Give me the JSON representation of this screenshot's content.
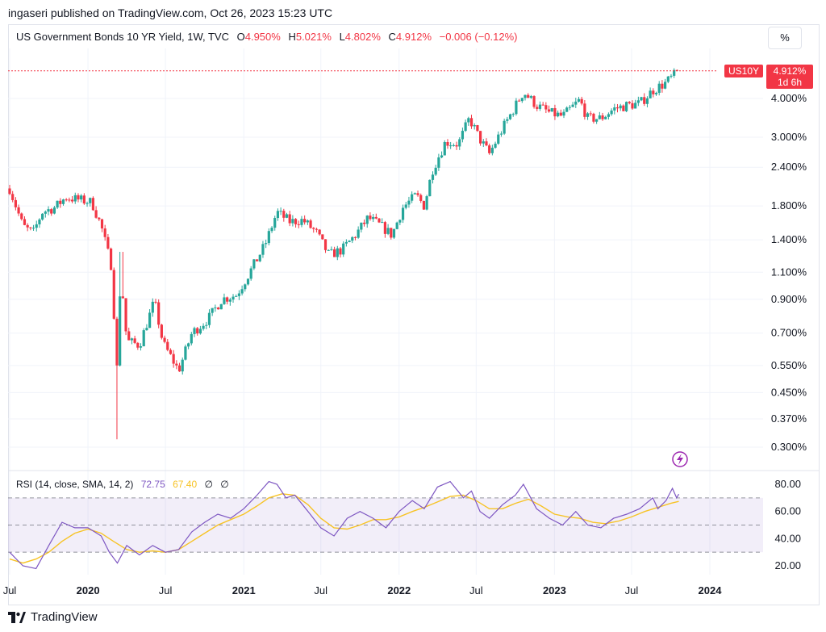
{
  "header": {
    "publisher": "ingaseri published on TradingView.com, Oct 26, 2023 15:23 UTC"
  },
  "legend": {
    "symbol": "US Government Bonds 10 YR Yield, 1W, TVC",
    "open_label": "O",
    "open": "4.950%",
    "high_label": "H",
    "high": "5.021%",
    "low_label": "L",
    "low": "4.802%",
    "close_label": "C",
    "close": "4.912%",
    "change": "−0.006 (−0.12%)"
  },
  "scale_button": "%",
  "price_tag": {
    "ticker": "US10Y",
    "value": "4.912%",
    "countdown": "1d 6h"
  },
  "rsi_legend": {
    "label": "RSI (14, close, SMA, 14, 2)",
    "rsi": "72.75",
    "sma": "67.40",
    "extra1": "∅",
    "extra2": "∅"
  },
  "footer": {
    "brand": "TradingView"
  },
  "colors": {
    "up": "#26a69a",
    "down": "#f23645",
    "rsi": "#7e57c2",
    "rsi_sma": "#f7c325",
    "band": "#7e57c2"
  },
  "chart_data": [
    {
      "type": "candlestick",
      "title": "US Government Bonds 10 YR Yield, 1W, TVC",
      "y_scale": "log",
      "y_ticks": [
        "4.000%",
        "3.000%",
        "2.400%",
        "1.800%",
        "1.400%",
        "1.100%",
        "0.900%",
        "0.700%",
        "0.550%",
        "0.450%",
        "0.370%",
        "0.300%"
      ],
      "y_tick_values": [
        4.0,
        3.0,
        2.4,
        1.8,
        1.4,
        1.1,
        0.9,
        0.7,
        0.55,
        0.45,
        0.37,
        0.3
      ],
      "x_ticks": [
        "Jul",
        "2020",
        "Jul",
        "2021",
        "Jul",
        "2022",
        "Jul",
        "2023",
        "Jul",
        "2024"
      ],
      "x_tick_dates": [
        "2019-07-01",
        "2020-01-01",
        "2020-07-01",
        "2021-01-01",
        "2021-07-01",
        "2022-01-01",
        "2022-07-01",
        "2023-01-01",
        "2023-07-01",
        "2024-01-01"
      ],
      "last_value": 4.912,
      "series": [
        {
          "date": "2019-07-01",
          "value": 2.05
        },
        {
          "date": "2019-08-01",
          "value": 1.55
        },
        {
          "date": "2019-08-25",
          "value": 1.47
        },
        {
          "date": "2019-09-15",
          "value": 1.72
        },
        {
          "date": "2019-10-15",
          "value": 1.78
        },
        {
          "date": "2019-11-10",
          "value": 1.92
        },
        {
          "date": "2019-12-15",
          "value": 1.88
        },
        {
          "date": "2020-01-10",
          "value": 1.85
        },
        {
          "date": "2020-02-01",
          "value": 1.55
        },
        {
          "date": "2020-02-25",
          "value": 1.15
        },
        {
          "date": "2020-03-09",
          "value": 0.54
        },
        {
          "date": "2020-03-18",
          "value": 1.1
        },
        {
          "date": "2020-04-01",
          "value": 0.66
        },
        {
          "date": "2020-05-01",
          "value": 0.64
        },
        {
          "date": "2020-06-05",
          "value": 0.89
        },
        {
          "date": "2020-06-25",
          "value": 0.65
        },
        {
          "date": "2020-08-01",
          "value": 0.53
        },
        {
          "date": "2020-09-01",
          "value": 0.7
        },
        {
          "date": "2020-10-10",
          "value": 0.78
        },
        {
          "date": "2020-11-10",
          "value": 0.9
        },
        {
          "date": "2020-12-15",
          "value": 0.93
        },
        {
          "date": "2021-01-15",
          "value": 1.1
        },
        {
          "date": "2021-02-20",
          "value": 1.35
        },
        {
          "date": "2021-03-20",
          "value": 1.72
        },
        {
          "date": "2021-04-20",
          "value": 1.6
        },
        {
          "date": "2021-05-20",
          "value": 1.62
        },
        {
          "date": "2021-06-20",
          "value": 1.48
        },
        {
          "date": "2021-07-20",
          "value": 1.25
        },
        {
          "date": "2021-08-20",
          "value": 1.3
        },
        {
          "date": "2021-09-20",
          "value": 1.45
        },
        {
          "date": "2021-10-20",
          "value": 1.65
        },
        {
          "date": "2021-11-20",
          "value": 1.55
        },
        {
          "date": "2021-12-15",
          "value": 1.45
        },
        {
          "date": "2022-01-10",
          "value": 1.78
        },
        {
          "date": "2022-02-10",
          "value": 1.95
        },
        {
          "date": "2022-03-01",
          "value": 1.8
        },
        {
          "date": "2022-03-20",
          "value": 2.35
        },
        {
          "date": "2022-04-20",
          "value": 2.9
        },
        {
          "date": "2022-05-20",
          "value": 2.85
        },
        {
          "date": "2022-06-15",
          "value": 3.45
        },
        {
          "date": "2022-07-10",
          "value": 2.95
        },
        {
          "date": "2022-08-01",
          "value": 2.65
        },
        {
          "date": "2022-09-01",
          "value": 3.2
        },
        {
          "date": "2022-10-20",
          "value": 4.2
        },
        {
          "date": "2022-11-20",
          "value": 3.8
        },
        {
          "date": "2022-12-20",
          "value": 3.6
        },
        {
          "date": "2023-01-20",
          "value": 3.5
        },
        {
          "date": "2023-03-01",
          "value": 3.95
        },
        {
          "date": "2023-03-20",
          "value": 3.45
        },
        {
          "date": "2023-04-20",
          "value": 3.45
        },
        {
          "date": "2023-05-20",
          "value": 3.7
        },
        {
          "date": "2023-06-20",
          "value": 3.8
        },
        {
          "date": "2023-07-20",
          "value": 3.85
        },
        {
          "date": "2023-08-20",
          "value": 4.25
        },
        {
          "date": "2023-09-20",
          "value": 4.5
        },
        {
          "date": "2023-10-20",
          "value": 4.912
        }
      ]
    },
    {
      "type": "line",
      "title": "RSI (14, close, SMA, 14, 2)",
      "ylim": [
        10,
        90
      ],
      "y_ticks": [
        "80.00",
        "60.00",
        "40.00",
        "20.00"
      ],
      "y_tick_values": [
        80,
        60,
        40,
        20
      ],
      "bands": [
        70,
        50,
        30
      ],
      "series": [
        {
          "name": "RSI",
          "points": [
            [
              "2019-07-01",
              30
            ],
            [
              "2019-08-01",
              20
            ],
            [
              "2019-09-01",
              18
            ],
            [
              "2019-10-01",
              35
            ],
            [
              "2019-11-01",
              52
            ],
            [
              "2019-12-01",
              48
            ],
            [
              "2020-01-01",
              48
            ],
            [
              "2020-02-01",
              42
            ],
            [
              "2020-02-20",
              30
            ],
            [
              "2020-03-10",
              22
            ],
            [
              "2020-04-01",
              35
            ],
            [
              "2020-05-01",
              28
            ],
            [
              "2020-06-01",
              35
            ],
            [
              "2020-07-01",
              30
            ],
            [
              "2020-08-01",
              32
            ],
            [
              "2020-09-01",
              45
            ],
            [
              "2020-10-01",
              52
            ],
            [
              "2020-11-01",
              58
            ],
            [
              "2020-12-01",
              55
            ],
            [
              "2021-01-01",
              62
            ],
            [
              "2021-02-01",
              72
            ],
            [
              "2021-03-01",
              82
            ],
            [
              "2021-03-20",
              80
            ],
            [
              "2021-04-10",
              70
            ],
            [
              "2021-05-01",
              72
            ],
            [
              "2021-06-01",
              60
            ],
            [
              "2021-07-01",
              48
            ],
            [
              "2021-08-01",
              42
            ],
            [
              "2021-09-01",
              55
            ],
            [
              "2021-10-01",
              60
            ],
            [
              "2021-11-01",
              55
            ],
            [
              "2021-12-01",
              48
            ],
            [
              "2022-01-01",
              60
            ],
            [
              "2022-02-01",
              68
            ],
            [
              "2022-03-01",
              62
            ],
            [
              "2022-04-01",
              78
            ],
            [
              "2022-05-01",
              82
            ],
            [
              "2022-06-01",
              70
            ],
            [
              "2022-06-20",
              75
            ],
            [
              "2022-07-10",
              60
            ],
            [
              "2022-08-01",
              55
            ],
            [
              "2022-09-01",
              65
            ],
            [
              "2022-10-01",
              72
            ],
            [
              "2022-10-20",
              80
            ],
            [
              "2022-11-20",
              62
            ],
            [
              "2022-12-20",
              55
            ],
            [
              "2023-01-20",
              50
            ],
            [
              "2023-02-20",
              60
            ],
            [
              "2023-03-20",
              50
            ],
            [
              "2023-04-20",
              48
            ],
            [
              "2023-05-20",
              55
            ],
            [
              "2023-06-20",
              58
            ],
            [
              "2023-07-20",
              62
            ],
            [
              "2023-08-20",
              70
            ],
            [
              "2023-09-01",
              62
            ],
            [
              "2023-09-20",
              68
            ],
            [
              "2023-10-05",
              77
            ],
            [
              "2023-10-15",
              70
            ],
            [
              "2023-10-20",
              72.75
            ]
          ]
        },
        {
          "name": "SMA",
          "points": [
            [
              "2019-07-01",
              25
            ],
            [
              "2019-08-01",
              22
            ],
            [
              "2019-09-01",
              25
            ],
            [
              "2019-10-01",
              30
            ],
            [
              "2019-11-01",
              38
            ],
            [
              "2019-12-01",
              44
            ],
            [
              "2020-01-01",
              47
            ],
            [
              "2020-02-01",
              44
            ],
            [
              "2020-03-01",
              38
            ],
            [
              "2020-04-01",
              32
            ],
            [
              "2020-05-01",
              30
            ],
            [
              "2020-06-01",
              31
            ],
            [
              "2020-07-01",
              30
            ],
            [
              "2020-08-01",
              32
            ],
            [
              "2020-09-01",
              38
            ],
            [
              "2020-10-01",
              44
            ],
            [
              "2020-11-01",
              50
            ],
            [
              "2020-12-01",
              54
            ],
            [
              "2021-01-01",
              58
            ],
            [
              "2021-02-01",
              64
            ],
            [
              "2021-03-01",
              70
            ],
            [
              "2021-04-01",
              73
            ],
            [
              "2021-05-01",
              72
            ],
            [
              "2021-06-01",
              65
            ],
            [
              "2021-07-01",
              55
            ],
            [
              "2021-08-01",
              48
            ],
            [
              "2021-09-01",
              47
            ],
            [
              "2021-10-01",
              50
            ],
            [
              "2021-11-01",
              54
            ],
            [
              "2021-12-01",
              54
            ],
            [
              "2022-01-01",
              56
            ],
            [
              "2022-02-01",
              60
            ],
            [
              "2022-03-01",
              63
            ],
            [
              "2022-04-01",
              67
            ],
            [
              "2022-05-01",
              71
            ],
            [
              "2022-06-01",
              72
            ],
            [
              "2022-07-01",
              68
            ],
            [
              "2022-08-01",
              62
            ],
            [
              "2022-09-01",
              62
            ],
            [
              "2022-10-01",
              66
            ],
            [
              "2022-11-01",
              69
            ],
            [
              "2022-12-01",
              64
            ],
            [
              "2023-01-01",
              58
            ],
            [
              "2023-02-01",
              56
            ],
            [
              "2023-03-01",
              55
            ],
            [
              "2023-04-01",
              52
            ],
            [
              "2023-05-01",
              51
            ],
            [
              "2023-06-01",
              53
            ],
            [
              "2023-07-01",
              56
            ],
            [
              "2023-08-01",
              60
            ],
            [
              "2023-09-01",
              63
            ],
            [
              "2023-10-01",
              66
            ],
            [
              "2023-10-20",
              67.4
            ]
          ]
        }
      ]
    }
  ]
}
